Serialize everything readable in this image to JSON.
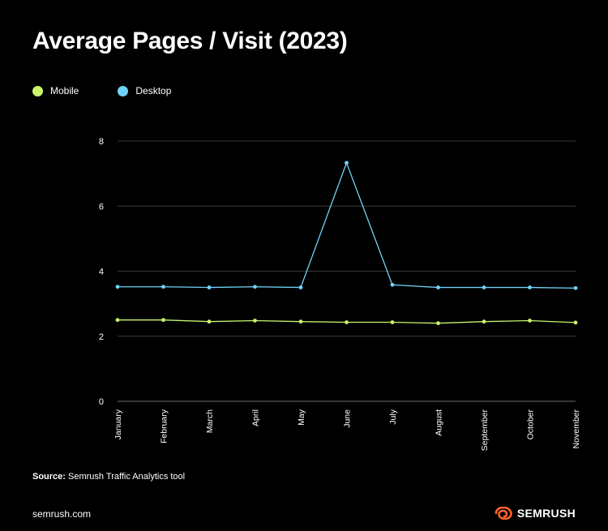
{
  "title": "Average Pages / Visit (2023)",
  "legend": [
    {
      "label": "Mobile",
      "color": "#c7f56b"
    },
    {
      "label": "Desktop",
      "color": "#6fd3f7"
    }
  ],
  "source": {
    "label": "Source:",
    "text": "Semrush Traffic Analytics tool"
  },
  "footer": {
    "domain": "semrush.com",
    "brand": "SEMRUSH",
    "brand_color": "#ff642d"
  },
  "chart_data": {
    "type": "line",
    "categories": [
      "January",
      "February",
      "March",
      "April",
      "May",
      "June",
      "July",
      "August",
      "September",
      "October",
      "November"
    ],
    "series": [
      {
        "name": "Mobile",
        "color": "#c7f56b",
        "values": [
          2.5,
          2.5,
          2.45,
          2.48,
          2.45,
          2.43,
          2.43,
          2.4,
          2.45,
          2.48,
          2.42
        ]
      },
      {
        "name": "Desktop",
        "color": "#6fd3f7",
        "values": [
          3.52,
          3.52,
          3.5,
          3.52,
          3.5,
          7.33,
          3.58,
          3.5,
          3.5,
          3.5,
          3.48
        ]
      }
    ],
    "ylim": [
      0,
      8
    ],
    "yticks": [
      0,
      2,
      4,
      6,
      8
    ],
    "grid": true,
    "legend_position": "top-left"
  }
}
